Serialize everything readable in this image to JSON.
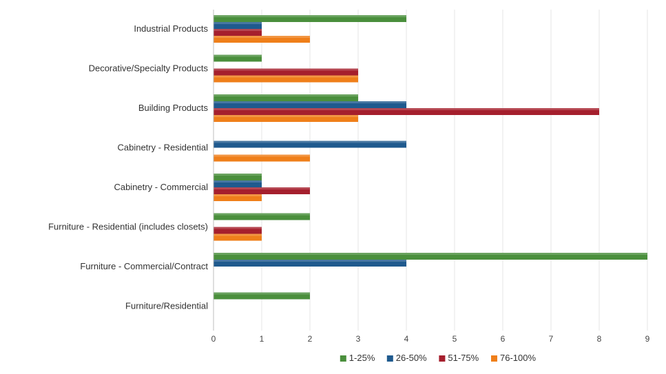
{
  "chart_data": {
    "type": "bar",
    "orientation": "horizontal",
    "title": "",
    "xlabel": "",
    "ylabel": "",
    "xlim": [
      0,
      9
    ],
    "x_ticks": [
      "0",
      "1",
      "2",
      "3",
      "4",
      "5",
      "6",
      "7",
      "8",
      "9"
    ],
    "grid": true,
    "legend_position": "bottom",
    "categories": [
      "Industrial Products",
      "Decorative/Specialty Products",
      "Building Products",
      "Cabinetry - Residential",
      "Cabinetry - Commercial",
      "Furniture - Residential (includes closets)",
      "Furniture - Commercial/Contract",
      "Furniture/Residential"
    ],
    "series": [
      {
        "name": "1-25%",
        "color": "#4a8f3c",
        "values": [
          4,
          1,
          3,
          0,
          1,
          2,
          9,
          2
        ]
      },
      {
        "name": "26-50%",
        "color": "#1f5a8e",
        "values": [
          1,
          0,
          4,
          4,
          1,
          0,
          4,
          0
        ]
      },
      {
        "name": "51-75%",
        "color": "#a51f2d",
        "values": [
          1,
          3,
          8,
          0,
          2,
          1,
          0,
          0
        ]
      },
      {
        "name": "76-100%",
        "color": "#ef7f1a",
        "values": [
          2,
          3,
          3,
          2,
          1,
          1,
          0,
          0
        ]
      }
    ]
  }
}
